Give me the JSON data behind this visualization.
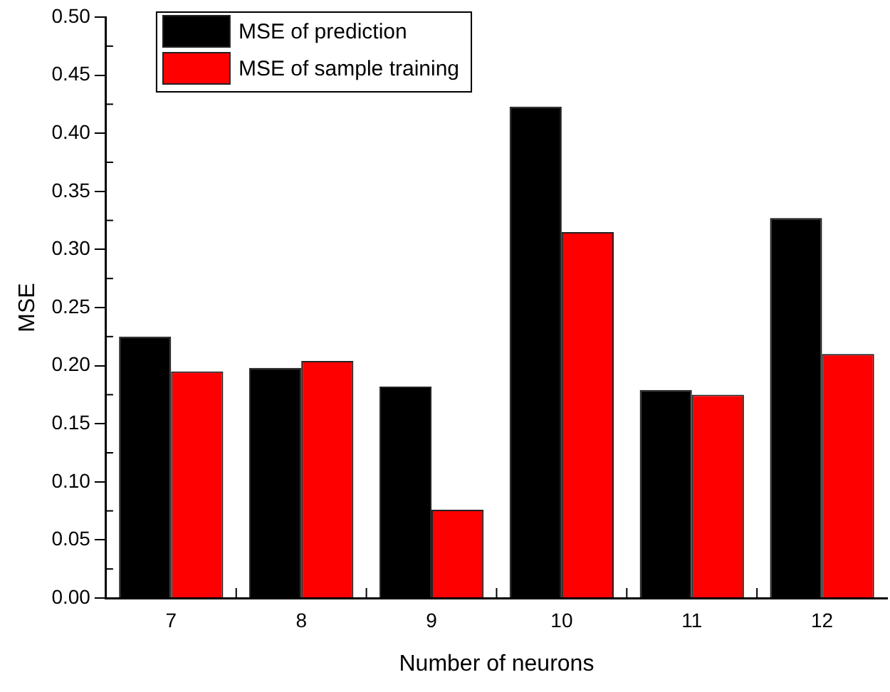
{
  "chart_data": {
    "type": "bar",
    "xlabel": "Number of neurons",
    "ylabel": "MSE",
    "categories": [
      "7",
      "8",
      "9",
      "10",
      "11",
      "12"
    ],
    "series": [
      {
        "name": "MSE of prediction",
        "color": "#000000",
        "values": [
          0.225,
          0.198,
          0.182,
          0.423,
          0.179,
          0.327
        ]
      },
      {
        "name": "MSE of sample training",
        "color": "#ff0000",
        "values": [
          0.195,
          0.204,
          0.076,
          0.315,
          0.175,
          0.21
        ]
      }
    ],
    "ylim": [
      0,
      0.5
    ],
    "yticks": [
      {
        "value": 0,
        "label": "0.00"
      },
      {
        "value": 0.05,
        "label": "0.05"
      },
      {
        "value": 0.1,
        "label": "0.10"
      },
      {
        "value": 0.15,
        "label": "0.15"
      },
      {
        "value": 0.2,
        "label": "0.20"
      },
      {
        "value": 0.25,
        "label": "0.25"
      },
      {
        "value": 0.3,
        "label": "0.30"
      },
      {
        "value": 0.35,
        "label": "0.35"
      },
      {
        "value": 0.4,
        "label": "0.40"
      },
      {
        "value": 0.45,
        "label": "0.45"
      },
      {
        "value": 0.5,
        "label": "0.50"
      }
    ],
    "grid": false,
    "legend": "top left"
  }
}
